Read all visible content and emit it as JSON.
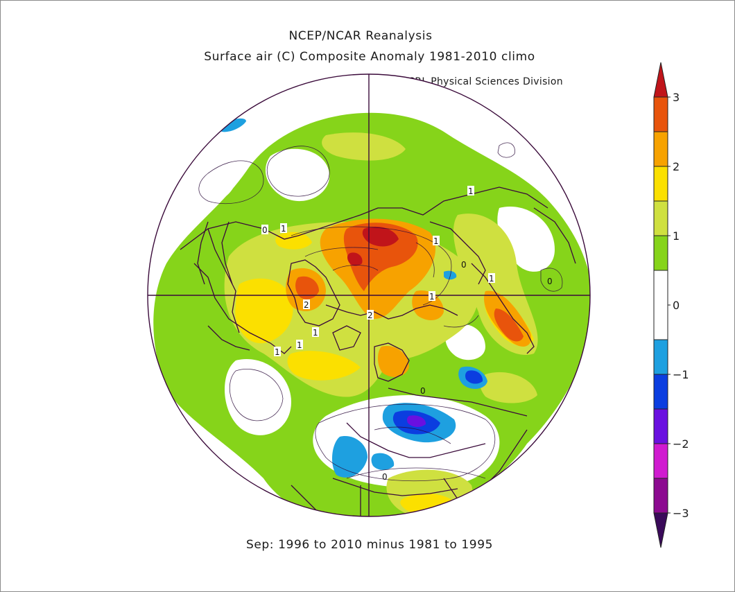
{
  "header": {
    "title": "NCEP/NCAR Reanalysis",
    "subtitle": "Surface air (C) Composite Anomaly 1981-2010 climo",
    "credit": "NOAA/ESRL Physical Sciences Division"
  },
  "footer": {
    "period": "Sep: 1996 to 2010 minus 1981 to 1995"
  },
  "colorbar": {
    "levels": [
      {
        "from": 2.5,
        "to": 3,
        "color": "#e8540c"
      },
      {
        "from": 2,
        "to": 2.5,
        "color": "#f7a200"
      },
      {
        "from": 1.5,
        "to": 2,
        "color": "#fbe000"
      },
      {
        "from": 1,
        "to": 1.5,
        "color": "#cfe040"
      },
      {
        "from": 0.5,
        "to": 1,
        "color": "#86d41a"
      },
      {
        "from": -0.5,
        "to": 0.5,
        "color": "#ffffff"
      },
      {
        "from": -1,
        "to": -0.5,
        "color": "#1ea0e0"
      },
      {
        "from": -1.5,
        "to": -1,
        "color": "#0b3ee0"
      },
      {
        "from": -2,
        "to": -1.5,
        "color": "#6a10e0"
      },
      {
        "from": -2.5,
        "to": -2,
        "color": "#d01ad0"
      },
      {
        "from": -3,
        "to": -2.5,
        "color": "#8c0a90"
      }
    ],
    "top_arrow_color": "#c0141a",
    "bottom_arrow_color": "#3a0a5a",
    "tick_labels": [
      "3",
      "2",
      "1",
      "0",
      "−1",
      "−2",
      "−3"
    ]
  },
  "map": {
    "contour_labels": [
      "0",
      "1",
      "1",
      "1",
      "1",
      "1",
      "1",
      "1",
      "1",
      "2",
      "2",
      "0",
      "0",
      "0",
      "0"
    ]
  }
}
